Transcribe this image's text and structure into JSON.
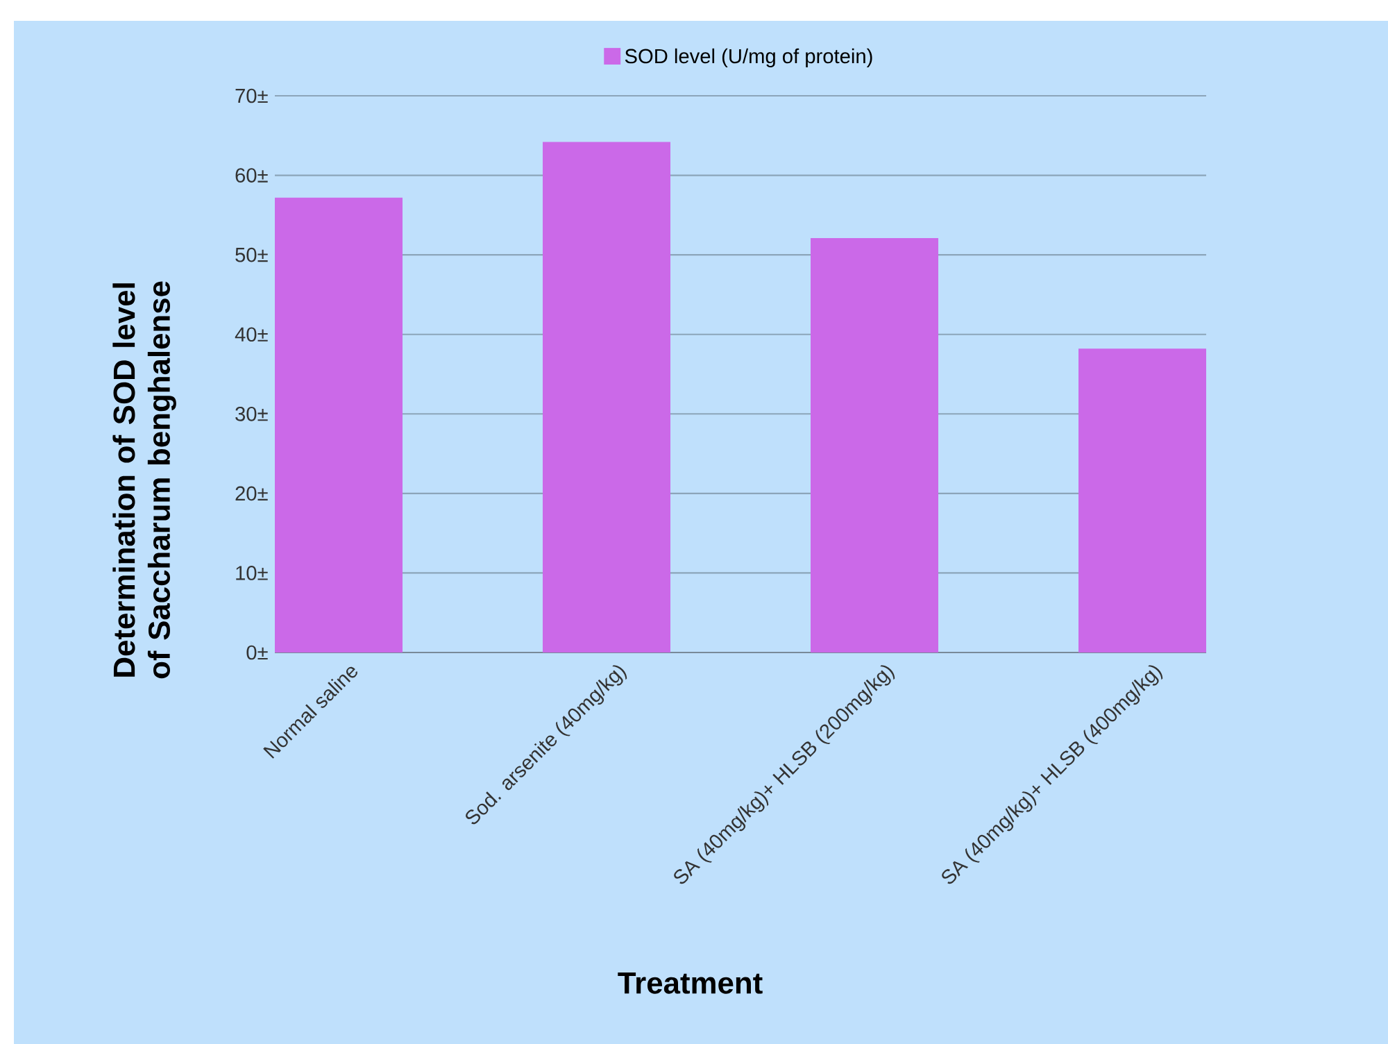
{
  "chart_data": {
    "type": "bar",
    "categories": [
      "Normal saline",
      "Sod. arsenite (40mg/kg)",
      "SA (40mg/kg)+ HLSB (200mg/kg)",
      "SA (40mg/kg)+ HLSB (400mg/kg)"
    ],
    "series": [
      {
        "name": "SOD level (U/mg of protein)",
        "color": "#cb69e8",
        "values": [
          57.2,
          64.2,
          52.1,
          38.2
        ]
      }
    ],
    "xlabel": "Treatment",
    "ylabel": "Determination of SOD level of Saccharum benghalense",
    "ylim": [
      0,
      70
    ],
    "yticks": [
      {
        "value": 0,
        "label": "0±"
      },
      {
        "value": 10,
        "label": "10±"
      },
      {
        "value": 20,
        "label": "20±"
      },
      {
        "value": 30,
        "label": "30±"
      },
      {
        "value": 40,
        "label": "40±"
      },
      {
        "value": 50,
        "label": "50±"
      },
      {
        "value": 60,
        "label": "60±"
      },
      {
        "value": 70,
        "label": "70±"
      }
    ],
    "grid": "y",
    "legend": "top"
  }
}
